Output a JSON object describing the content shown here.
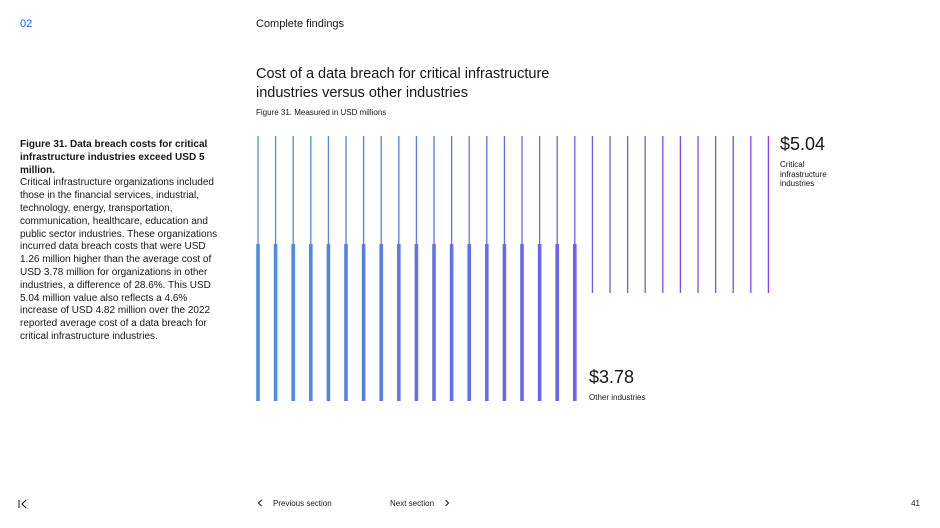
{
  "header": {
    "section_number": "02",
    "section_title": "Complete findings"
  },
  "chart_heading": {
    "title": "Cost of a data breach for critical infrastructure industries versus other industries",
    "caption": "Figure 31. Measured in USD millions"
  },
  "sidebar_text": {
    "heading": "Figure 31. Data breach costs for critical infrastructure industries exceed USD 5 million.",
    "body": "Critical infrastructure organizations included those in the financial services, industrial, technology, energy, transportation, communication, healthcare, education and public sector industries. These organizations incurred data breach costs that were USD 1.26 million higher than the average cost of USD 3.78 million for organizations in other industries, a difference of 28.6%. This USD 5.04 million value also reflects a 4.6% increase of USD 4.82 million over the 2022 reported average cost of a data breach for critical infrastructure industries."
  },
  "chart_data": {
    "type": "bar",
    "unit": "USD millions",
    "series": [
      {
        "name": "Critical infrastructure industries",
        "value": 5.04,
        "value_label": "$5.04"
      },
      {
        "name": "Other industries",
        "value": 3.78,
        "value_label": "$3.78"
      }
    ],
    "colors": {
      "start": "#4a90e2",
      "end": "#8a3ffc"
    },
    "line_count": 30
  },
  "footer": {
    "prev_label": "Previous section",
    "next_label": "Next section",
    "page_number": "41",
    "first_icon": "skip-to-start-icon",
    "prev_icon": "chevron-left-icon",
    "next_icon": "chevron-right-icon"
  }
}
